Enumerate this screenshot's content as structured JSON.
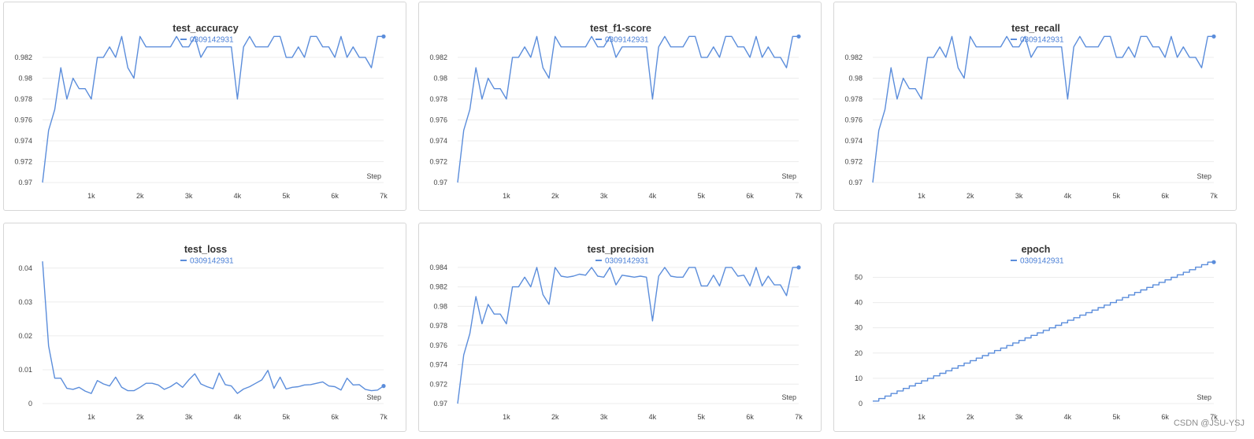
{
  "watermark": "CSDN @JSU-YSJ",
  "series_color": "#5b8ddb",
  "legend_color": "#4a7fd6",
  "chart_data": [
    {
      "type": "line",
      "title": "test_accuracy",
      "legend": [
        "0309142931"
      ],
      "xlabel": "Step",
      "xlim": [
        0,
        7000
      ],
      "ylim": [
        0.97,
        0.9838
      ],
      "yticks": [
        0.97,
        0.972,
        0.974,
        0.976,
        0.978,
        0.98,
        0.982
      ],
      "ytick_labels": [
        "0.97",
        "0.972",
        "0.974",
        "0.976",
        "0.978",
        "0.98",
        "0.982"
      ],
      "xticks": [
        1000,
        2000,
        3000,
        4000,
        5000,
        6000,
        7000
      ],
      "xtick_labels": [
        "1k",
        "2k",
        "3k",
        "4k",
        "5k",
        "6k",
        "7k"
      ],
      "series": [
        {
          "name": "0309142931",
          "x": [
            0,
            125,
            250,
            375,
            500,
            625,
            750,
            875,
            1000,
            1125,
            1250,
            1375,
            1500,
            1625,
            1750,
            1875,
            2000,
            2125,
            2250,
            2375,
            2500,
            2625,
            2750,
            2875,
            3000,
            3125,
            3250,
            3375,
            3500,
            3625,
            3750,
            3875,
            4000,
            4125,
            4250,
            4375,
            4500,
            4625,
            4750,
            4875,
            5000,
            5125,
            5250,
            5375,
            5500,
            5625,
            5750,
            5875,
            6000,
            6125,
            6250,
            6375,
            6500,
            6625,
            6750,
            6875,
            7000
          ],
          "y": [
            0.97,
            0.975,
            0.977,
            0.981,
            0.978,
            0.98,
            0.979,
            0.979,
            0.978,
            0.982,
            0.982,
            0.983,
            0.982,
            0.984,
            0.981,
            0.98,
            0.984,
            0.983,
            0.983,
            0.983,
            0.983,
            0.983,
            0.984,
            0.983,
            0.983,
            0.984,
            0.982,
            0.983,
            0.983,
            0.983,
            0.983,
            0.983,
            0.978,
            0.983,
            0.984,
            0.983,
            0.983,
            0.983,
            0.984,
            0.984,
            0.982,
            0.982,
            0.983,
            0.982,
            0.984,
            0.984,
            0.983,
            0.983,
            0.982,
            0.984,
            0.982,
            0.983,
            0.982,
            0.982,
            0.981,
            0.984,
            0.984
          ]
        }
      ]
    },
    {
      "type": "line",
      "title": "test_f1-score",
      "legend": [
        "0309142931"
      ],
      "xlabel": "Step",
      "xlim": [
        0,
        7000
      ],
      "ylim": [
        0.97,
        0.9838
      ],
      "yticks": [
        0.97,
        0.972,
        0.974,
        0.976,
        0.978,
        0.98,
        0.982
      ],
      "ytick_labels": [
        "0.97",
        "0.972",
        "0.974",
        "0.976",
        "0.978",
        "0.98",
        "0.982"
      ],
      "xticks": [
        1000,
        2000,
        3000,
        4000,
        5000,
        6000,
        7000
      ],
      "xtick_labels": [
        "1k",
        "2k",
        "3k",
        "4k",
        "5k",
        "6k",
        "7k"
      ],
      "series": [
        {
          "name": "0309142931",
          "x": [
            0,
            125,
            250,
            375,
            500,
            625,
            750,
            875,
            1000,
            1125,
            1250,
            1375,
            1500,
            1625,
            1750,
            1875,
            2000,
            2125,
            2250,
            2375,
            2500,
            2625,
            2750,
            2875,
            3000,
            3125,
            3250,
            3375,
            3500,
            3625,
            3750,
            3875,
            4000,
            4125,
            4250,
            4375,
            4500,
            4625,
            4750,
            4875,
            5000,
            5125,
            5250,
            5375,
            5500,
            5625,
            5750,
            5875,
            6000,
            6125,
            6250,
            6375,
            6500,
            6625,
            6750,
            6875,
            7000
          ],
          "y": [
            0.97,
            0.975,
            0.977,
            0.981,
            0.978,
            0.98,
            0.979,
            0.979,
            0.978,
            0.982,
            0.982,
            0.983,
            0.982,
            0.984,
            0.981,
            0.98,
            0.984,
            0.983,
            0.983,
            0.983,
            0.983,
            0.983,
            0.984,
            0.983,
            0.983,
            0.984,
            0.982,
            0.983,
            0.983,
            0.983,
            0.983,
            0.983,
            0.978,
            0.983,
            0.984,
            0.983,
            0.983,
            0.983,
            0.984,
            0.984,
            0.982,
            0.982,
            0.983,
            0.982,
            0.984,
            0.984,
            0.983,
            0.983,
            0.982,
            0.984,
            0.982,
            0.983,
            0.982,
            0.982,
            0.981,
            0.984,
            0.984
          ]
        }
      ]
    },
    {
      "type": "line",
      "title": "test_recall",
      "legend": [
        "0309142931"
      ],
      "xlabel": "Step",
      "xlim": [
        0,
        7000
      ],
      "ylim": [
        0.97,
        0.9838
      ],
      "yticks": [
        0.97,
        0.972,
        0.974,
        0.976,
        0.978,
        0.98,
        0.982
      ],
      "ytick_labels": [
        "0.97",
        "0.972",
        "0.974",
        "0.976",
        "0.978",
        "0.98",
        "0.982"
      ],
      "xticks": [
        1000,
        2000,
        3000,
        4000,
        5000,
        6000,
        7000
      ],
      "xtick_labels": [
        "1k",
        "2k",
        "3k",
        "4k",
        "5k",
        "6k",
        "7k"
      ],
      "series": [
        {
          "name": "0309142931",
          "x": [
            0,
            125,
            250,
            375,
            500,
            625,
            750,
            875,
            1000,
            1125,
            1250,
            1375,
            1500,
            1625,
            1750,
            1875,
            2000,
            2125,
            2250,
            2375,
            2500,
            2625,
            2750,
            2875,
            3000,
            3125,
            3250,
            3375,
            3500,
            3625,
            3750,
            3875,
            4000,
            4125,
            4250,
            4375,
            4500,
            4625,
            4750,
            4875,
            5000,
            5125,
            5250,
            5375,
            5500,
            5625,
            5750,
            5875,
            6000,
            6125,
            6250,
            6375,
            6500,
            6625,
            6750,
            6875,
            7000
          ],
          "y": [
            0.97,
            0.975,
            0.977,
            0.981,
            0.978,
            0.98,
            0.979,
            0.979,
            0.978,
            0.982,
            0.982,
            0.983,
            0.982,
            0.984,
            0.981,
            0.98,
            0.984,
            0.983,
            0.983,
            0.983,
            0.983,
            0.983,
            0.984,
            0.983,
            0.983,
            0.984,
            0.982,
            0.983,
            0.983,
            0.983,
            0.983,
            0.983,
            0.978,
            0.983,
            0.984,
            0.983,
            0.983,
            0.983,
            0.984,
            0.984,
            0.982,
            0.982,
            0.983,
            0.982,
            0.984,
            0.984,
            0.983,
            0.983,
            0.982,
            0.984,
            0.982,
            0.983,
            0.982,
            0.982,
            0.981,
            0.984,
            0.984
          ]
        }
      ]
    },
    {
      "type": "line",
      "title": "test_loss",
      "legend": [
        "0309142931"
      ],
      "xlabel": "Step",
      "xlim": [
        0,
        7000
      ],
      "ylim": [
        0,
        0.0425
      ],
      "yticks": [
        0,
        0.01,
        0.02,
        0.03,
        0.04
      ],
      "ytick_labels": [
        "0",
        "0.01",
        "0.02",
        "0.03",
        "0.04"
      ],
      "xticks": [
        1000,
        2000,
        3000,
        4000,
        5000,
        6000,
        7000
      ],
      "xtick_labels": [
        "1k",
        "2k",
        "3k",
        "4k",
        "5k",
        "6k",
        "7k"
      ],
      "series": [
        {
          "name": "0309142931",
          "x": [
            0,
            125,
            250,
            375,
            500,
            625,
            750,
            875,
            1000,
            1125,
            1250,
            1375,
            1500,
            1625,
            1750,
            1875,
            2000,
            2125,
            2250,
            2375,
            2500,
            2625,
            2750,
            2875,
            3000,
            3125,
            3250,
            3375,
            3500,
            3625,
            3750,
            3875,
            4000,
            4125,
            4250,
            4375,
            4500,
            4625,
            4750,
            4875,
            5000,
            5125,
            5250,
            5375,
            5500,
            5625,
            5750,
            5875,
            6000,
            6125,
            6250,
            6375,
            6500,
            6625,
            6750,
            6875,
            7000
          ],
          "y": [
            0.042,
            0.017,
            0.0075,
            0.0075,
            0.0045,
            0.0042,
            0.0048,
            0.0037,
            0.003,
            0.0068,
            0.0058,
            0.0052,
            0.0078,
            0.0048,
            0.0038,
            0.0038,
            0.0048,
            0.006,
            0.006,
            0.0055,
            0.0042,
            0.005,
            0.0062,
            0.0048,
            0.007,
            0.0088,
            0.0058,
            0.005,
            0.0044,
            0.009,
            0.0056,
            0.0052,
            0.003,
            0.0043,
            0.005,
            0.006,
            0.007,
            0.0098,
            0.0045,
            0.0078,
            0.0043,
            0.0048,
            0.005,
            0.0055,
            0.0056,
            0.006,
            0.0064,
            0.0052,
            0.005,
            0.004,
            0.0075,
            0.0055,
            0.0056,
            0.0042,
            0.0038,
            0.004,
            0.0052
          ]
        }
      ]
    },
    {
      "type": "line",
      "title": "test_precision",
      "legend": [
        "0309142931"
      ],
      "xlabel": "Step",
      "xlim": [
        0,
        7000
      ],
      "ylim": [
        0.97,
        0.9848
      ],
      "yticks": [
        0.97,
        0.972,
        0.974,
        0.976,
        0.978,
        0.98,
        0.982,
        0.984
      ],
      "ytick_labels": [
        "0.97",
        "0.972",
        "0.974",
        "0.976",
        "0.978",
        "0.98",
        "0.982",
        "0.984"
      ],
      "xticks": [
        1000,
        2000,
        3000,
        4000,
        5000,
        6000,
        7000
      ],
      "xtick_labels": [
        "1k",
        "2k",
        "3k",
        "4k",
        "5k",
        "6k",
        "7k"
      ],
      "series": [
        {
          "name": "0309142931",
          "x": [
            0,
            125,
            250,
            375,
            500,
            625,
            750,
            875,
            1000,
            1125,
            1250,
            1375,
            1500,
            1625,
            1750,
            1875,
            2000,
            2125,
            2250,
            2375,
            2500,
            2625,
            2750,
            2875,
            3000,
            3125,
            3250,
            3375,
            3500,
            3625,
            3750,
            3875,
            4000,
            4125,
            4250,
            4375,
            4500,
            4625,
            4750,
            4875,
            5000,
            5125,
            5250,
            5375,
            5500,
            5625,
            5750,
            5875,
            6000,
            6125,
            6250,
            6375,
            6500,
            6625,
            6750,
            6875,
            7000
          ],
          "y": [
            0.97,
            0.975,
            0.9772,
            0.981,
            0.9782,
            0.9802,
            0.9792,
            0.9792,
            0.9782,
            0.982,
            0.982,
            0.983,
            0.982,
            0.984,
            0.9812,
            0.9802,
            0.984,
            0.9831,
            0.983,
            0.9831,
            0.9833,
            0.9832,
            0.984,
            0.9831,
            0.983,
            0.984,
            0.9822,
            0.9832,
            0.9831,
            0.983,
            0.9831,
            0.983,
            0.9785,
            0.9831,
            0.984,
            0.9831,
            0.983,
            0.983,
            0.984,
            0.984,
            0.9821,
            0.9821,
            0.9832,
            0.9821,
            0.984,
            0.984,
            0.9831,
            0.9832,
            0.9821,
            0.984,
            0.9821,
            0.9831,
            0.9822,
            0.9822,
            0.9811,
            0.984,
            0.984
          ]
        }
      ]
    },
    {
      "type": "line",
      "title": "epoch",
      "legend": [
        "0309142931"
      ],
      "xlabel": "Step",
      "xlim": [
        0,
        7000
      ],
      "ylim": [
        0,
        57
      ],
      "yticks": [
        0,
        10,
        20,
        30,
        40,
        50
      ],
      "ytick_labels": [
        "0",
        "10",
        "20",
        "30",
        "40",
        "50"
      ],
      "xticks": [
        1000,
        2000,
        3000,
        4000,
        5000,
        6000,
        7000
      ],
      "xtick_labels": [
        "1k",
        "2k",
        "3k",
        "4k",
        "5k",
        "6k",
        "7k"
      ],
      "steps": true,
      "step_per_epoch": 125,
      "epochs": [
        1,
        56
      ],
      "series": [
        {
          "name": "0309142931",
          "x": [
            0,
            7000
          ],
          "y": [
            1,
            56
          ]
        }
      ]
    }
  ]
}
